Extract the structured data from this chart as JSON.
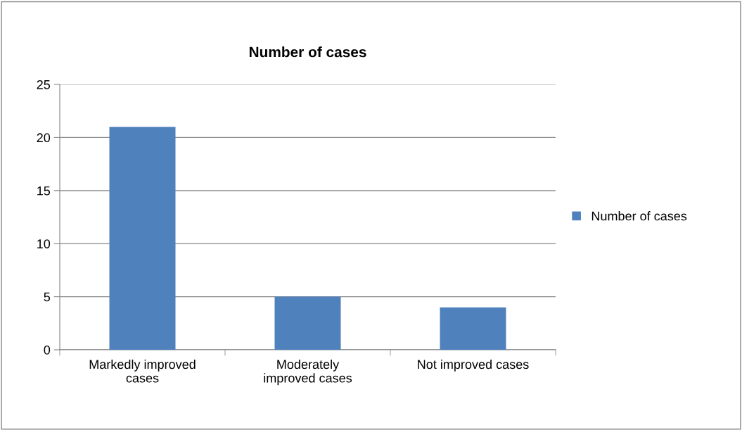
{
  "chart_data": {
    "type": "bar",
    "title": "Number of cases",
    "categories": [
      "Markedly improved cases",
      "Moderately improved cases",
      "Not improved cases"
    ],
    "series": [
      {
        "name": "Number of cases",
        "color": "#4f81bd",
        "values": [
          21,
          5,
          4
        ]
      }
    ],
    "ylim": [
      0,
      25
    ],
    "yticks": [
      0,
      5,
      10,
      15,
      20,
      25
    ],
    "grid": "y",
    "legend": "right"
  }
}
